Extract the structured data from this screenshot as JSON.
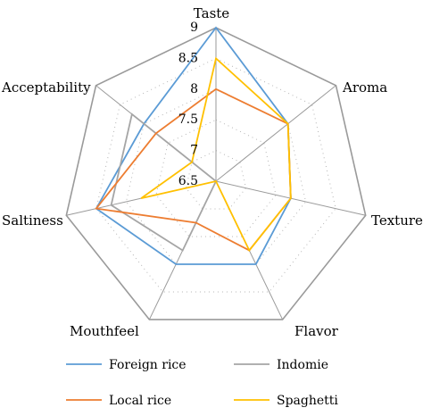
{
  "chart_data": {
    "type": "radar",
    "axes": [
      "Taste",
      "Aroma",
      "Texture",
      "Flavor",
      "Mouthfeel",
      "Saltiness",
      "Acceptability"
    ],
    "r_min": 6.5,
    "r_max": 9,
    "ticks": [
      "9",
      "8.5",
      "8",
      "7.5",
      "7",
      "6.5"
    ],
    "tick_values": [
      9,
      8.5,
      8,
      7.5,
      7,
      6.5
    ],
    "grid": true,
    "legend_position": "bottom",
    "series": [
      {
        "name": "Foreign rice",
        "color": "#5b9bd5",
        "values": [
          9.0,
          8.0,
          7.75,
          8.0,
          8.0,
          8.5,
          8.0
        ]
      },
      {
        "name": "Indomie",
        "color": "#a5a5a5",
        "values": [
          6.5,
          6.5,
          6.5,
          6.5,
          7.75,
          8.25,
          8.25
        ]
      },
      {
        "name": "Local rice",
        "color": "#ed7d31",
        "values": [
          8.0,
          8.0,
          7.75,
          7.75,
          7.25,
          8.5,
          7.75
        ]
      },
      {
        "name": "Spaghetti",
        "color": "#ffc000",
        "values": [
          8.5,
          8.0,
          7.75,
          7.75,
          6.5,
          7.75,
          7.0
        ]
      }
    ]
  }
}
